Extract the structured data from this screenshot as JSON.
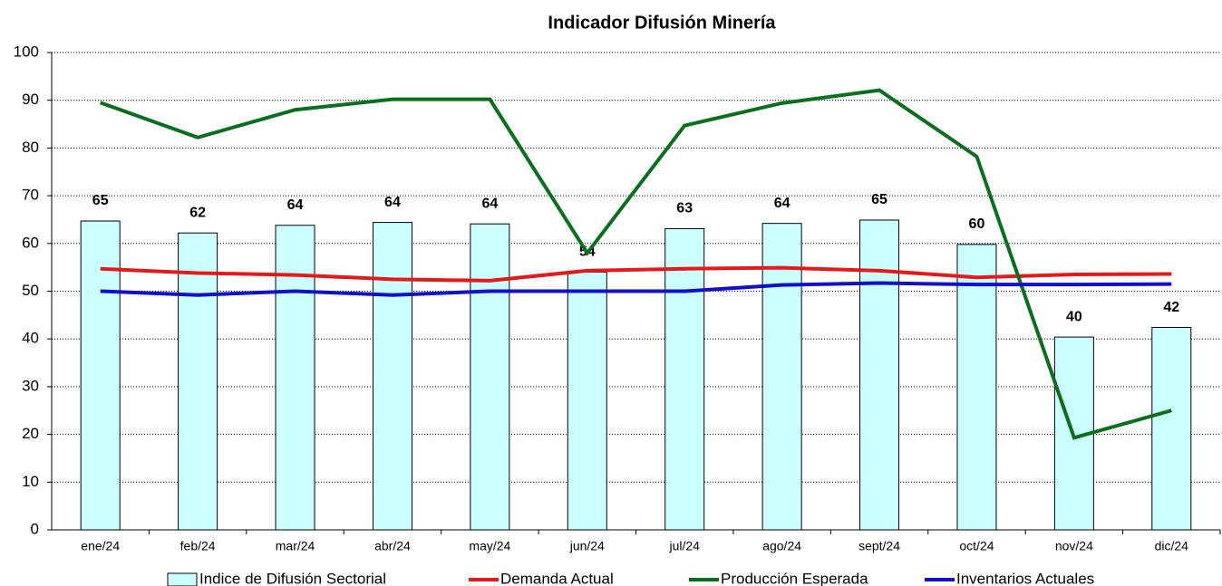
{
  "chart_data": {
    "type": "bar",
    "title": "Indicador Difusión Minería",
    "categories": [
      "ene/24",
      "feb/24",
      "mar/24",
      "abr/24",
      "may/24",
      "jun/24",
      "jul/24",
      "ago/24",
      "sept/24",
      "oct/24",
      "nov/24",
      "dic/24"
    ],
    "ylim": [
      0,
      100
    ],
    "yticks": [
      0,
      10,
      20,
      30,
      40,
      50,
      60,
      70,
      80,
      90,
      100
    ],
    "grid": true,
    "series": [
      {
        "name": "Indice de Difusión Sectorial",
        "type": "bar",
        "color": "#ccffff",
        "values": [
          64.7,
          62.2,
          63.8,
          64.4,
          64.1,
          54,
          63.1,
          64.2,
          64.9,
          59.8,
          40.4,
          42.4
        ],
        "value_labels": [
          "65",
          "62",
          "64",
          "64",
          "64",
          "54",
          "63",
          "64",
          "65",
          "60",
          "40",
          "42"
        ]
      },
      {
        "name": "Demanda Actual",
        "type": "line",
        "color": "#e31a1c",
        "values": [
          54.7,
          53.8,
          53.4,
          52.5,
          52.2,
          54.3,
          54.7,
          54.9,
          54.3,
          52.9,
          53.5,
          53.6
        ]
      },
      {
        "name": "Producción Esperada",
        "type": "line",
        "color": "#0b6e1f",
        "values": [
          89.5,
          82.2,
          88,
          90.2,
          90.2,
          58,
          84.7,
          89.4,
          92.1,
          78.2,
          19.3,
          25
        ]
      },
      {
        "name": "Inventarios Actuales",
        "type": "line",
        "color": "#1010c8",
        "values": [
          50,
          49.2,
          50,
          49.2,
          50,
          50,
          50,
          51.3,
          51.7,
          51.4,
          51.4,
          51.5
        ]
      }
    ]
  }
}
